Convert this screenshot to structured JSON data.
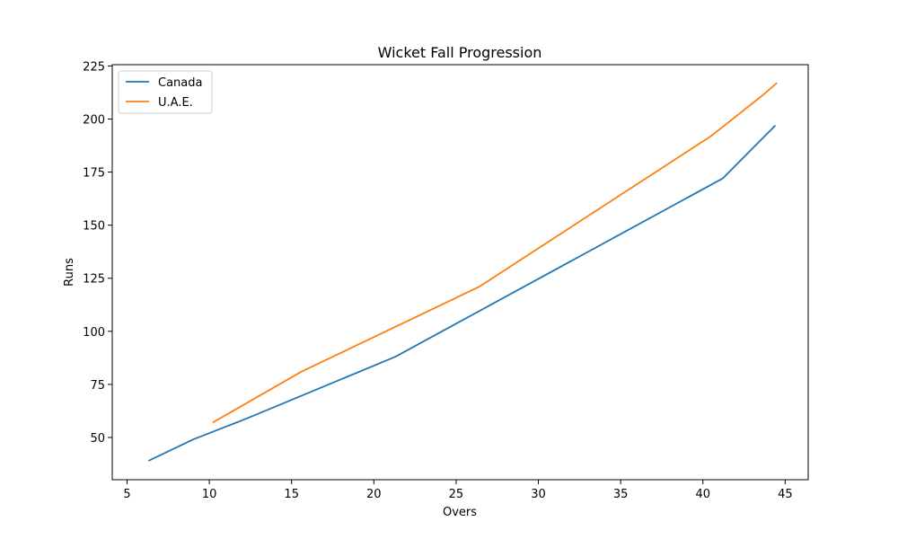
{
  "chart_data": {
    "type": "line",
    "title": "Wicket Fall Progression",
    "xlabel": "Overs",
    "ylabel": "Runs",
    "xlim": [
      4.1,
      46.4
    ],
    "ylim": [
      30.1,
      225.6
    ],
    "xticks": [
      5,
      10,
      15,
      20,
      25,
      30,
      35,
      40,
      45
    ],
    "yticks": [
      50,
      75,
      100,
      125,
      150,
      175,
      200,
      225
    ],
    "grid": false,
    "legend_position": "upper-left",
    "series": [
      {
        "name": "Canada",
        "color": "#1f77b4",
        "x": [
          6.3,
          9.0,
          12.3,
          21.3,
          41.2,
          44.4
        ],
        "y": [
          39,
          49,
          59,
          88,
          172,
          197
        ]
      },
      {
        "name": "U.A.E.",
        "color": "#ff7f0e",
        "x": [
          10.2,
          15.6,
          26.4,
          40.5,
          43.6,
          44.5
        ],
        "y": [
          57,
          81,
          121,
          192,
          211,
          217
        ]
      }
    ]
  }
}
